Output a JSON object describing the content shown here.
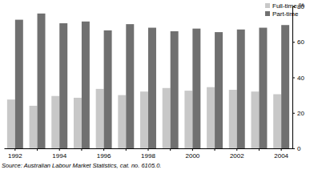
{
  "chart_data": {
    "type": "bar",
    "categories": [
      "1992",
      null,
      "1994",
      null,
      "1996",
      null,
      "1998",
      null,
      "2000",
      null,
      "2002",
      null,
      "2004"
    ],
    "series": [
      {
        "name": "Full-time",
        "color": "#c8c8c8",
        "values": [
          27.5,
          24,
          29.5,
          28.5,
          33.5,
          30,
          32,
          34,
          32.5,
          34.5,
          33,
          32,
          30.5
        ]
      },
      {
        "name": "Part-time",
        "color": "#707070",
        "values": [
          72.5,
          76,
          70.5,
          71.5,
          66.5,
          70,
          68,
          66,
          67.5,
          65.5,
          67,
          68,
          69.5
        ]
      }
    ],
    "y_label": "%",
    "ylim": [
      0,
      80
    ],
    "yticks": [
      0,
      20,
      40,
      60,
      80
    ],
    "grid": false,
    "legend": "top-right",
    "annotations": [
      "Source: Australian Labour Market Statistics, cat. no. 6105.0."
    ]
  }
}
